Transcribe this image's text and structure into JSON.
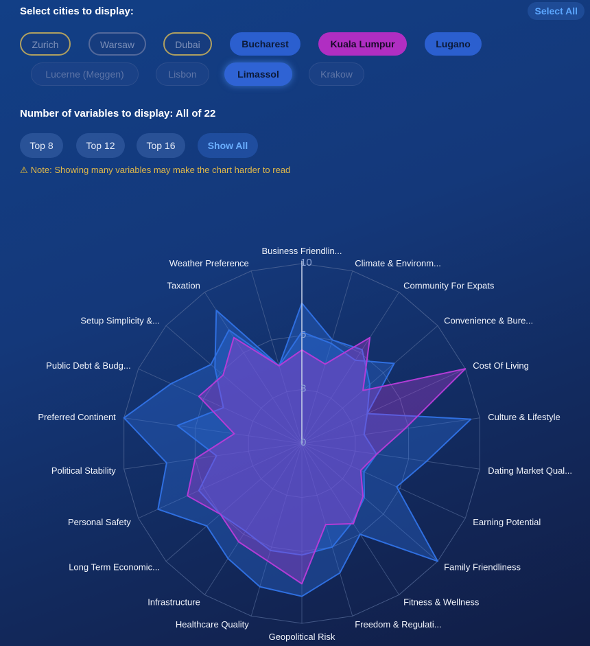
{
  "header": {
    "title": "Select cities to display:",
    "select_all": "Select All"
  },
  "cities": [
    {
      "label": "Zurich",
      "state": "off-gold"
    },
    {
      "label": "Warsaw",
      "state": "off"
    },
    {
      "label": "Dubai",
      "state": "off-gold"
    },
    {
      "label": "Bucharest",
      "state": "on"
    },
    {
      "label": "Kuala Lumpur",
      "state": "on-purple"
    },
    {
      "label": "Lugano",
      "state": "on"
    },
    {
      "label": "Lucerne (Meggen)",
      "state": "off-faint"
    },
    {
      "label": "Lisbon",
      "state": "off-faint"
    },
    {
      "label": "Limassol",
      "state": "on-glow"
    },
    {
      "label": "Krakow",
      "state": "off-faint"
    }
  ],
  "variables": {
    "title": "Number of variables to display: All of 22",
    "buttons": [
      "Top 8",
      "Top 12",
      "Top 16",
      "Show All"
    ],
    "active": "Show All",
    "note": "Note: Showing many variables may make the chart harder to read",
    "note_icon": "warning-icon"
  },
  "colors": {
    "blue_series": "#2f6fe0",
    "purple_series": "#b33cd6",
    "grid": "#5a6f9c"
  },
  "chart_data": {
    "type": "radar",
    "axes": [
      "Business Friendlin...",
      "Climate & Environm...",
      "Community For Expats",
      "Convenience & Bure...",
      "Cost Of Living",
      "Culture & Lifestyle",
      "Dating Market Qual...",
      "Earning Potential",
      "Family Friendliness",
      "Fitness & Wellness",
      "Freedom & Regulati...",
      "Geopolitical Risk",
      "Healthcare Quality",
      "Infrastructure",
      "Long Term Economic...",
      "Personal Safety",
      "Political Stability",
      "Preferred Continent",
      "Public Debt & Budg...",
      "Setup Simplicity &...",
      "Taxation",
      "Weather Preference"
    ],
    "ticks": [
      "0",
      "3",
      "6",
      "10"
    ],
    "rmax": 10,
    "series": [
      {
        "color": "#2f6fe0",
        "values": [
          7.8,
          6.0,
          6.2,
          5.0,
          4.0,
          3.5,
          4.2,
          3.8,
          4.6,
          5.2,
          6.0,
          6.2,
          6.2,
          5.8,
          6.0,
          6.3,
          4.8,
          7.0,
          4.8,
          6.4,
          8.8,
          4.5
        ]
      },
      {
        "color": "#2f6fe0",
        "values": [
          6.2,
          5.8,
          5.5,
          6.8,
          4.0,
          9.5,
          7.0,
          5.8,
          10.0,
          6.0,
          7.5,
          8.5,
          8.3,
          7.6,
          7.0,
          8.8,
          7.6,
          10.0,
          8.0,
          6.7,
          7.5,
          4.5
        ]
      },
      {
        "color": "#b33cd6",
        "values": [
          5.2,
          4.6,
          7.0,
          4.5,
          10.0,
          5.8,
          4.2,
          3.6,
          4.5,
          5.3,
          4.7,
          7.8,
          6.8,
          6.5,
          6.0,
          7.0,
          6.0,
          3.8,
          6.3,
          5.8,
          7.0,
          4.5
        ]
      }
    ]
  }
}
